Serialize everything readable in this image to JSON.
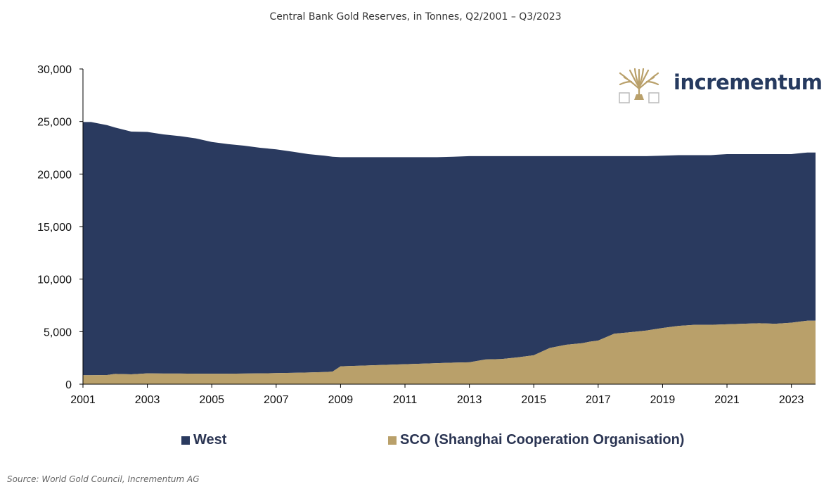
{
  "colors": {
    "west": "#2a3a5f",
    "sco": "#b9a06a",
    "axis": "#000000",
    "logo": "#b9a06a"
  },
  "logo": {
    "text": "incrementum",
    "icon": "tree-icon"
  },
  "source": "Source: World Gold Council, Incrementum AG",
  "chart_data": {
    "type": "area",
    "stacked": true,
    "title": "Central Bank Gold Reserves, in Tonnes, Q2/2001 – Q3/2023",
    "xlabel": "",
    "ylabel": "",
    "x": [
      2001.25,
      2001.75,
      2002.0,
      2002.5,
      2003.0,
      2003.5,
      2004.0,
      2004.5,
      2005.0,
      2005.5,
      2006.0,
      2006.5,
      2007.0,
      2007.5,
      2008.0,
      2008.5,
      2008.75,
      2009.0,
      2009.5,
      2010.0,
      2010.5,
      2011.0,
      2011.5,
      2012.0,
      2012.5,
      2013.0,
      2013.5,
      2014.0,
      2014.5,
      2014.75,
      2015.0,
      2015.5,
      2016.0,
      2016.5,
      2016.75,
      2017.0,
      2017.5,
      2018.0,
      2018.5,
      2019.0,
      2019.5,
      2020.0,
      2020.5,
      2021.0,
      2021.5,
      2022.0,
      2022.5,
      2023.0,
      2023.5
    ],
    "series": [
      {
        "name": "SCO (Shanghai Cooperation Organisation)",
        "values": [
          850,
          870,
          980,
          940,
          1030,
          1010,
          1010,
          1000,
          1000,
          1000,
          1010,
          1030,
          1050,
          1080,
          1110,
          1150,
          1200,
          1700,
          1750,
          1800,
          1850,
          1900,
          1950,
          2000,
          2050,
          2080,
          2350,
          2400,
          2550,
          2650,
          2750,
          3450,
          3750,
          3900,
          4050,
          4150,
          4800,
          4950,
          5100,
          5350,
          5550,
          5650,
          5650,
          5700,
          5750,
          5800,
          5750,
          5850,
          6050
        ]
      },
      {
        "name": "West",
        "values": [
          24100,
          23780,
          23450,
          23100,
          22980,
          22760,
          22600,
          22400,
          22050,
          21850,
          21690,
          21470,
          21300,
          21050,
          20790,
          20600,
          20450,
          19900,
          19850,
          19800,
          19750,
          19700,
          19650,
          19600,
          19600,
          19620,
          19350,
          19300,
          19150,
          19050,
          18950,
          18250,
          17950,
          17800,
          17650,
          17550,
          16900,
          16750,
          16600,
          16400,
          16250,
          16150,
          16150,
          16200,
          16150,
          16100,
          16150,
          16050,
          16000
        ]
      }
    ],
    "x_ticks": [
      "2001",
      "2003",
      "2005",
      "2007",
      "2009",
      "2011",
      "2013",
      "2015",
      "2017",
      "2019",
      "2021",
      "2023"
    ],
    "y_ticks": [
      "0",
      "5,000",
      "10,000",
      "15,000",
      "20,000",
      "25,000",
      "30,000"
    ],
    "xlim": [
      2001,
      2023.75
    ],
    "ylim": [
      0,
      30000
    ],
    "legend_order": [
      "West",
      "SCO (Shanghai Cooperation Organisation)"
    ],
    "legend_position": "bottom",
    "grid": false
  }
}
